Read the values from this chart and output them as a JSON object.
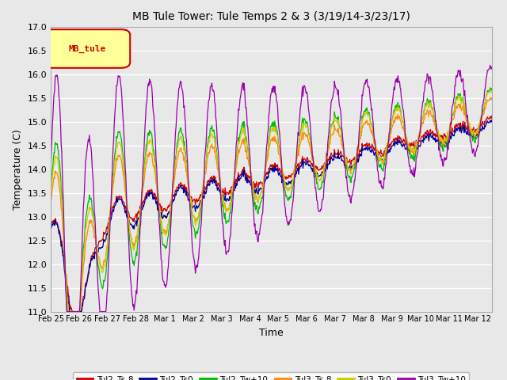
{
  "title": "MB Tule Tower: Tule Temps 2 & 3 (3/19/14-3/23/17)",
  "xlabel": "Time",
  "ylabel": "Temperature (C)",
  "ylim": [
    11.0,
    17.0
  ],
  "yticks": [
    11.0,
    11.5,
    12.0,
    12.5,
    13.0,
    13.5,
    14.0,
    14.5,
    15.0,
    15.5,
    16.0,
    16.5,
    17.0
  ],
  "plot_bg_color": "#e8e8e8",
  "fig_bg_color": "#e8e8e8",
  "legend_label": "MB_tule",
  "legend_box_facecolor": "#ffff99",
  "legend_box_edge": "#cc0000",
  "series": [
    {
      "name": "Tul2_Ts-8",
      "color": "#cc0000"
    },
    {
      "name": "Tul2_Ts0",
      "color": "#000099"
    },
    {
      "name": "Tul2_Tw+10",
      "color": "#00bb00"
    },
    {
      "name": "Tul3_Ts-8",
      "color": "#ff8800"
    },
    {
      "name": "Tul3_Ts0",
      "color": "#cccc00"
    },
    {
      "name": "Tul3_Tw+10",
      "color": "#9900aa"
    }
  ],
  "xtick_labels": [
    "Feb 25",
    "Feb 26",
    "Feb 27",
    "Feb 28",
    "Mar 1",
    "Mar 2",
    "Mar 3",
    "Mar 4",
    "Mar 5",
    "Mar 6",
    "Mar 7",
    "Mar 8",
    "Mar 9",
    "Mar 10",
    "Mar 11",
    "Mar 12"
  ],
  "n_points": 800,
  "start_day": 0,
  "end_day": 15.5
}
